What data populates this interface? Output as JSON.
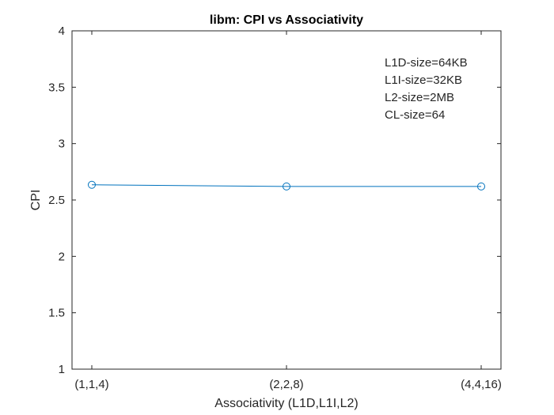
{
  "chart_data": {
    "type": "line",
    "title": "libm: CPI vs Associativity",
    "xlabel": "Associativity (L1D,L1I,L2)",
    "ylabel": "CPI",
    "categories": [
      "(1,1,4)",
      "(2,2,8)",
      "(4,4,16)"
    ],
    "series": [
      {
        "values": [
          2.635,
          2.62,
          2.62
        ],
        "color": "#0072BD",
        "marker": "circle"
      }
    ],
    "ylim": [
      1,
      4
    ],
    "yticks": [
      "1",
      "1.5",
      "2",
      "2.5",
      "3",
      "3.5",
      "4"
    ],
    "annotation": [
      "L1D-size=64KB",
      "L1I-size=32KB",
      "L2-size=2MB",
      "CL-size=64"
    ],
    "grid": false,
    "box": true
  }
}
